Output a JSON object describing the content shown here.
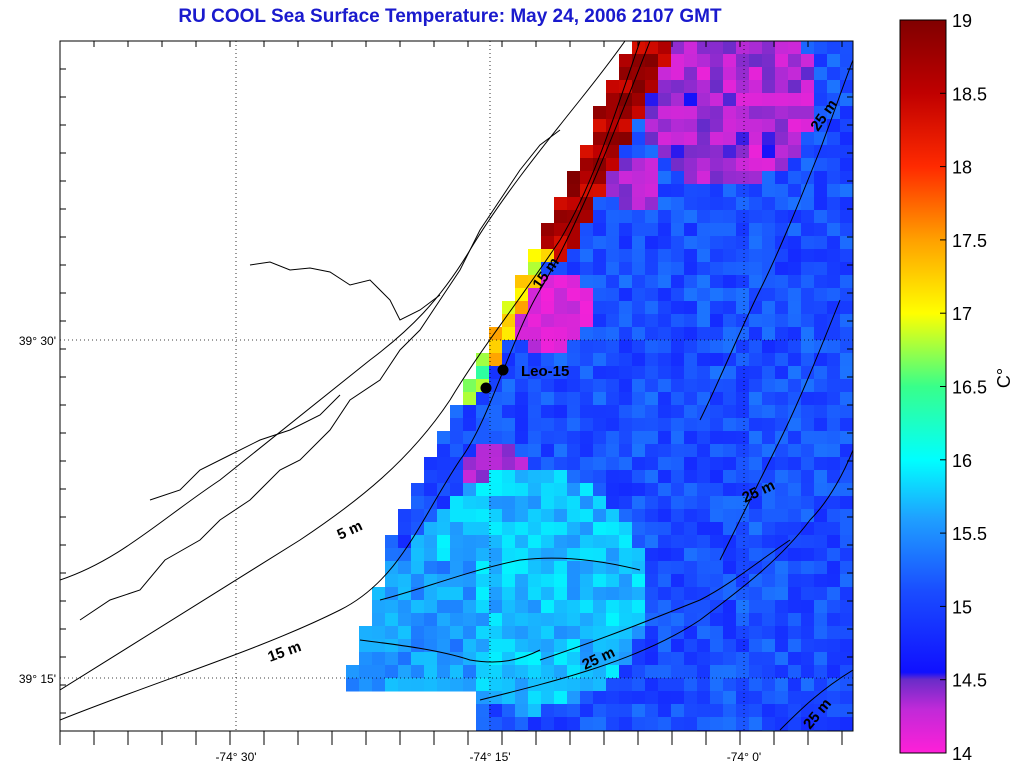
{
  "title": "RU COOL  Sea Surface Temperature:  May 24, 2006 2107 GMT",
  "map": {
    "lon_ticks": [
      {
        "label": "-74° 30'",
        "value": -74.5
      },
      {
        "label": "-74° 15'",
        "value": -74.25
      },
      {
        "label": "-74° 0'",
        "value": -74.0
      }
    ],
    "lat_ticks": [
      {
        "label": "39° 30'",
        "value": 39.5
      },
      {
        "label": "39° 15'",
        "value": 39.25
      }
    ],
    "station": {
      "label": "Leo-15"
    },
    "contour_labels": [
      "15 m",
      "25 m",
      "25 m",
      "5 m",
      "15 m",
      "25 m",
      "25 m"
    ]
  },
  "colorbar": {
    "unit": "C°",
    "min": 14,
    "max": 19,
    "ticks": [
      "19",
      "18.5",
      "18",
      "17.5",
      "17",
      "16.5",
      "16",
      "15.5",
      "15",
      "14.5",
      "14"
    ]
  },
  "colors": {
    "title": "#1a1acd",
    "ocean_base": "#1e3cf0",
    "warm": "#8b0000",
    "cool": "#ff2fd0"
  }
}
